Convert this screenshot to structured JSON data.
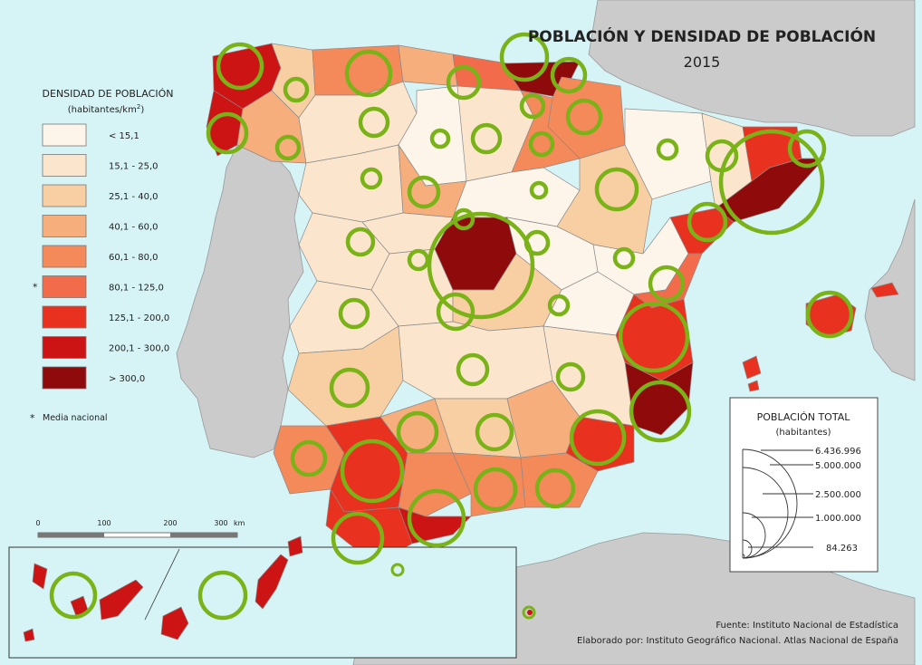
{
  "title": {
    "line1": "POBLACIÓN Y DENSIDAD DE POBLACIÓN",
    "line2": "2015"
  },
  "colors": {
    "sea": "#d6f3f6",
    "foreign_land": "#cbcbcb",
    "border": "#8a8a8a",
    "circle": "#7ab317"
  },
  "density_legend": {
    "title": "DENSIDAD DE POBLACIÓN",
    "unit_prefix": "(habitantes/km",
    "unit_sup": "2",
    "unit_suffix": ")",
    "classes": [
      {
        "label": "< 15,1",
        "color": "#fdf4ea"
      },
      {
        "label": "15,1 - 25,0",
        "color": "#fbe6cd"
      },
      {
        "label": "25,1 - 40,0",
        "color": "#f8cfa3"
      },
      {
        "label": "40,1 - 60,0",
        "color": "#f5ae7c"
      },
      {
        "label": "60,1 - 80,0",
        "color": "#f48a5a"
      },
      {
        "label": "80,1 - 125,0",
        "color": "#f26b4a",
        "mark": "*"
      },
      {
        "label": "125,1 - 200,0",
        "color": "#e8321f"
      },
      {
        "label": "200,1 - 300,0",
        "color": "#cc1414"
      },
      {
        "label": "> 300,0",
        "color": "#8f0b0b"
      }
    ],
    "note_mark": "*",
    "note": "Media nacional"
  },
  "scale_bar": {
    "ticks": [
      "0",
      "100",
      "200",
      "300"
    ],
    "unit": "km"
  },
  "population_legend": {
    "title": "POBLACIÓN TOTAL",
    "subtitle": "(habitantes)",
    "values": [
      "6.436.996",
      "5.000.000",
      "2.500.000",
      "1.000.000",
      "84.263"
    ]
  },
  "source": "Fuente: Instituto Nacional de Estadística",
  "credit": "Elaborado por: Instituto Geográfico Nacional. Atlas Nacional de España"
}
